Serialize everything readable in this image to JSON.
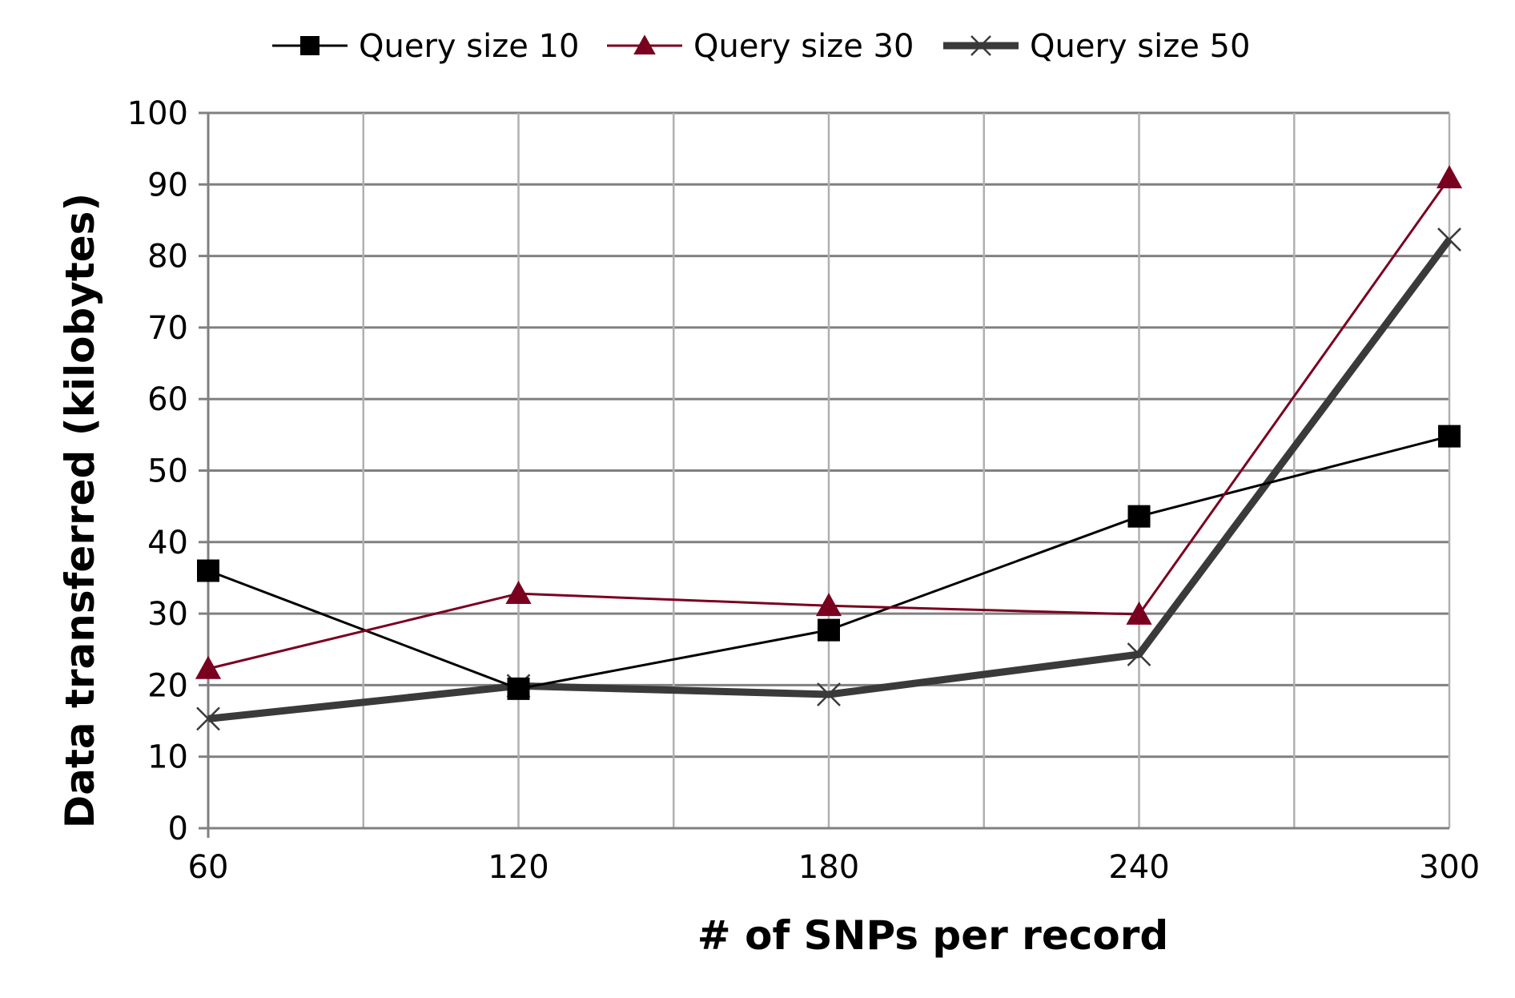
{
  "chart_data": {
    "type": "line",
    "title": "",
    "xlabel": "# of SNPs per record",
    "ylabel": "Data transferred (kilobytes)",
    "x": [
      60,
      120,
      180,
      240,
      300
    ],
    "x_tick_labels": [
      "60",
      "120",
      "180",
      "240",
      "300"
    ],
    "xlim": [
      60,
      300
    ],
    "ylim": [
      0,
      100
    ],
    "y_ticks": [
      0,
      10,
      20,
      30,
      40,
      50,
      60,
      70,
      80,
      90,
      100
    ],
    "grid": true,
    "legend_position": "top",
    "series": [
      {
        "name": "Query size 10",
        "values": [
          36,
          19.5,
          27.7,
          43.6,
          54.8
        ],
        "color": "#000000",
        "marker": "square",
        "line_style": "thin"
      },
      {
        "name": "Query size 30",
        "values": [
          22.3,
          32.8,
          31.1,
          29.9,
          90.9
        ],
        "color": "#7a0020",
        "marker": "triangle",
        "line_style": "thin"
      },
      {
        "name": "Query size 50",
        "values": [
          15.3,
          19.9,
          18.7,
          24.3,
          82.3
        ],
        "color": "#3a3a3a",
        "marker": "x",
        "line_style": "thick"
      }
    ]
  }
}
